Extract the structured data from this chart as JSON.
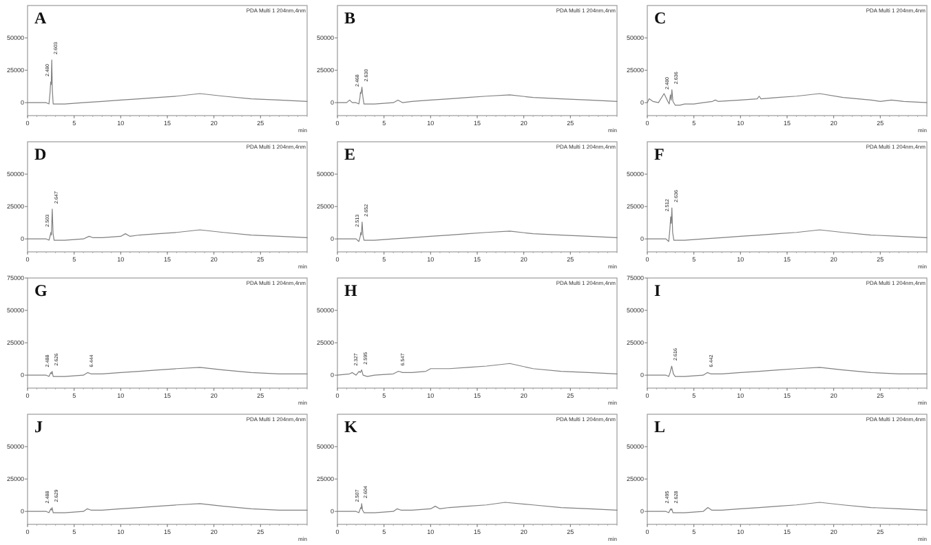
{
  "chart_data": [
    {
      "type": "line",
      "title": "A",
      "subtitle": "PDA Multi 1 204nm,4nm",
      "xlabel": "min",
      "xlim": [
        0,
        30
      ],
      "xticks": [
        0,
        5,
        10,
        15,
        20,
        25
      ],
      "ylim": [
        -10000,
        75000
      ],
      "yticks": [
        0,
        25000,
        50000
      ],
      "grid": false,
      "marker": "none",
      "series": [
        {
          "color": "#7f7f7f",
          "x": [
            0,
            1,
            2,
            2.3,
            2.42,
            2.48,
            2.54,
            2.6,
            2.66,
            2.75,
            3,
            4,
            6,
            8,
            10,
            12,
            14,
            16,
            18.5,
            21,
            24,
            27,
            30
          ],
          "values": [
            0,
            0,
            0,
            -1000,
            8000,
            16000,
            14000,
            33000,
            10000,
            -1000,
            -1000,
            -1000,
            0,
            1000,
            2000,
            3000,
            4000,
            5000,
            7000,
            5000,
            3000,
            2000,
            1000
          ]
        }
      ],
      "annotations": [
        {
          "text": "2.480",
          "x": 2.48,
          "y": 16000
        },
        {
          "text": "2.603",
          "x": 2.6,
          "y": 33000
        }
      ]
    },
    {
      "type": "line",
      "title": "B",
      "subtitle": "PDA Multi 1 204nm,4nm",
      "xlabel": "min",
      "xlim": [
        0,
        30
      ],
      "xticks": [
        0,
        5,
        10,
        15,
        20,
        25
      ],
      "ylim": [
        -10000,
        75000
      ],
      "yticks": [
        0,
        25000,
        50000
      ],
      "grid": false,
      "marker": "none",
      "series": [
        {
          "color": "#7f7f7f",
          "x": [
            0,
            1,
            1.3,
            1.6,
            2,
            2.3,
            2.42,
            2.47,
            2.54,
            2.63,
            2.72,
            2.85,
            3.2,
            4,
            6,
            6.5,
            7,
            8,
            10,
            12,
            14,
            16,
            18.5,
            21,
            24,
            27,
            30
          ],
          "values": [
            0,
            0,
            2000,
            0,
            0,
            -1000,
            4000,
            8000,
            7000,
            12000,
            5000,
            -1000,
            -1000,
            -1000,
            0,
            2000,
            0,
            1000,
            2000,
            3000,
            4000,
            5000,
            6000,
            4000,
            3000,
            2000,
            1000
          ]
        }
      ],
      "annotations": [
        {
          "text": "2.468",
          "x": 2.47,
          "y": 8000
        },
        {
          "text": "2.630",
          "x": 2.63,
          "y": 12000
        }
      ]
    },
    {
      "type": "line",
      "title": "C",
      "subtitle": "PDA Multi 1 204nm,4nm",
      "xlabel": "min",
      "xlim": [
        0,
        30
      ],
      "xticks": [
        0,
        5,
        10,
        15,
        20,
        25
      ],
      "ylim": [
        -10000,
        75000
      ],
      "yticks": [
        0,
        25000,
        50000
      ],
      "grid": false,
      "marker": "none",
      "series": [
        {
          "color": "#7f7f7f",
          "x": [
            0,
            0.2,
            0.6,
            1.2,
            1.8,
            2.2,
            2.35,
            2.48,
            2.56,
            2.64,
            2.75,
            3,
            3.5,
            4,
            5,
            7,
            7.3,
            7.6,
            10,
            11.8,
            12,
            12.2,
            14,
            16,
            18.5,
            21,
            24,
            25,
            26.2,
            27.5,
            30
          ],
          "values": [
            0,
            3000,
            1000,
            0,
            7000,
            1000,
            -1000,
            6000,
            2000,
            10000,
            1000,
            -2000,
            -2000,
            -1000,
            -1000,
            1000,
            2000,
            1000,
            2000,
            3000,
            5000,
            3000,
            4000,
            5000,
            7000,
            4000,
            2000,
            1000,
            2000,
            1000,
            0
          ]
        }
      ],
      "annotations": [
        {
          "text": "2.480",
          "x": 2.48,
          "y": 6000
        },
        {
          "text": "2.636",
          "x": 2.64,
          "y": 10000
        }
      ]
    },
    {
      "type": "line",
      "title": "D",
      "subtitle": "PDA Multi 1 204nm,4nm",
      "xlabel": "min",
      "xlim": [
        0,
        30
      ],
      "xticks": [
        0,
        5,
        10,
        15,
        20,
        25
      ],
      "ylim": [
        -10000,
        75000
      ],
      "yticks": [
        0,
        25000,
        50000
      ],
      "grid": false,
      "marker": "none",
      "series": [
        {
          "color": "#7f7f7f",
          "x": [
            0,
            1,
            2,
            2.3,
            2.45,
            2.5,
            2.56,
            2.65,
            2.74,
            2.85,
            3.2,
            4,
            6,
            6.6,
            7,
            8,
            10,
            10.5,
            11,
            12,
            14,
            16,
            18.5,
            21,
            24,
            27,
            30
          ],
          "values": [
            0,
            0,
            0,
            -1000,
            3000,
            5000,
            3000,
            23000,
            4000,
            -1000,
            -1000,
            -1000,
            0,
            2000,
            1000,
            1000,
            2000,
            4000,
            2000,
            3000,
            4000,
            5000,
            7000,
            5000,
            3000,
            2000,
            1000
          ]
        }
      ],
      "annotations": [
        {
          "text": "2.503",
          "x": 2.5,
          "y": 5000
        },
        {
          "text": "2.647",
          "x": 2.65,
          "y": 23000
        }
      ]
    },
    {
      "type": "line",
      "title": "E",
      "subtitle": "PDA Multi 1 204nm,4nm",
      "xlabel": "min",
      "xlim": [
        0,
        30
      ],
      "xticks": [
        0,
        5,
        10,
        15,
        20,
        25
      ],
      "ylim": [
        -10000,
        75000
      ],
      "yticks": [
        0,
        25000,
        50000
      ],
      "grid": false,
      "marker": "none",
      "series": [
        {
          "color": "#7f7f7f",
          "x": [
            0,
            1,
            2,
            2.3,
            2.45,
            2.51,
            2.57,
            2.65,
            2.74,
            2.85,
            3.2,
            4,
            6,
            8,
            10,
            12,
            14,
            16,
            18.5,
            21,
            24,
            27,
            30
          ],
          "values": [
            0,
            0,
            0,
            -2000,
            2000,
            5000,
            3000,
            13000,
            3000,
            -1000,
            -1000,
            -1000,
            0,
            1000,
            2000,
            3000,
            4000,
            5000,
            6000,
            4000,
            3000,
            2000,
            1000
          ]
        }
      ],
      "annotations": [
        {
          "text": "2.513",
          "x": 2.51,
          "y": 5000
        },
        {
          "text": "2.652",
          "x": 2.65,
          "y": 13000
        }
      ]
    },
    {
      "type": "line",
      "title": "F",
      "subtitle": "PDA Multi 1 204nm,4nm",
      "xlabel": "min",
      "xlim": [
        0,
        30
      ],
      "xticks": [
        0,
        5,
        10,
        15,
        20,
        25
      ],
      "ylim": [
        -10000,
        75000
      ],
      "yticks": [
        0,
        25000,
        50000
      ],
      "grid": false,
      "marker": "none",
      "series": [
        {
          "color": "#7f7f7f",
          "x": [
            0,
            1,
            2,
            2.3,
            2.43,
            2.51,
            2.57,
            2.64,
            2.72,
            2.85,
            3.2,
            4,
            6,
            8,
            10,
            12,
            14,
            16,
            18.5,
            21,
            24,
            27,
            30
          ],
          "values": [
            0,
            0,
            0,
            -2000,
            8000,
            17000,
            12000,
            24000,
            5000,
            -1000,
            -1000,
            -1000,
            0,
            1000,
            2000,
            3000,
            4000,
            5000,
            7000,
            5000,
            3000,
            2000,
            1000
          ]
        }
      ],
      "annotations": [
        {
          "text": "2.512",
          "x": 2.51,
          "y": 17000
        },
        {
          "text": "2.636",
          "x": 2.64,
          "y": 24000
        }
      ]
    },
    {
      "type": "line",
      "title": "G",
      "subtitle": "PDA Multi 1 204nm,4nm",
      "xlabel": "min",
      "xlim": [
        0,
        30
      ],
      "xticks": [
        0,
        5,
        10,
        15,
        20,
        25
      ],
      "ylim": [
        -10000,
        75000
      ],
      "yticks": [
        0,
        25000,
        50000,
        75000
      ],
      "grid": false,
      "marker": "none",
      "series": [
        {
          "color": "#7f7f7f",
          "x": [
            0,
            1,
            2,
            2.3,
            2.49,
            2.56,
            2.63,
            2.75,
            3.2,
            4,
            6,
            6.44,
            6.8,
            8,
            10,
            12,
            14,
            16,
            18.5,
            21,
            24,
            27,
            30
          ],
          "values": [
            0,
            0,
            0,
            -1000,
            2000,
            1000,
            3000,
            -1000,
            -1000,
            -1000,
            0,
            2000,
            1000,
            1000,
            2000,
            3000,
            4000,
            5000,
            6000,
            4000,
            2000,
            1000,
            1000
          ]
        }
      ],
      "annotations": [
        {
          "text": "2.488",
          "x": 2.49,
          "y": 2000
        },
        {
          "text": "2.626",
          "x": 2.63,
          "y": 3000
        },
        {
          "text": "6.444",
          "x": 6.44,
          "y": 2000
        }
      ]
    },
    {
      "type": "line",
      "title": "H",
      "subtitle": "PDA Multi 1 204nm,4nm",
      "xlabel": "min",
      "xlim": [
        0,
        30
      ],
      "xticks": [
        0,
        5,
        10,
        15,
        20,
        25
      ],
      "ylim": [
        -10000,
        75000
      ],
      "yticks": [
        0,
        25000,
        50000
      ],
      "grid": false,
      "marker": "none",
      "series": [
        {
          "color": "#7f7f7f",
          "x": [
            0,
            1.3,
            1.6,
            2,
            2.33,
            2.45,
            2.6,
            2.75,
            3.2,
            4,
            6,
            6.55,
            7,
            8,
            9.5,
            10,
            12,
            14,
            16,
            18.5,
            21,
            24,
            27,
            30
          ],
          "values": [
            0,
            1000,
            2000,
            0,
            3000,
            2000,
            4000,
            0,
            -1000,
            0,
            1000,
            3000,
            2000,
            2000,
            3000,
            5000,
            5000,
            6000,
            7000,
            9000,
            5000,
            3000,
            2000,
            1000
          ]
        }
      ],
      "annotations": [
        {
          "text": "2.327",
          "x": 2.33,
          "y": 3000
        },
        {
          "text": "2.595",
          "x": 2.6,
          "y": 4000
        },
        {
          "text": "6.547",
          "x": 6.55,
          "y": 3000
        }
      ]
    },
    {
      "type": "line",
      "title": "I",
      "subtitle": "PDA Multi 1 204nm,4nm",
      "xlabel": "min",
      "xlim": [
        0,
        30
      ],
      "xticks": [
        0,
        5,
        10,
        15,
        20,
        25
      ],
      "ylim": [
        -10000,
        75000
      ],
      "yticks": [
        0,
        25000,
        50000,
        75000
      ],
      "grid": false,
      "marker": "none",
      "series": [
        {
          "color": "#7f7f7f",
          "x": [
            0,
            1,
            2,
            2.3,
            2.45,
            2.62,
            2.8,
            3,
            4,
            6,
            6.44,
            6.8,
            8,
            10,
            12,
            14,
            16,
            18.5,
            21,
            24,
            27,
            30
          ],
          "values": [
            0,
            0,
            0,
            -1000,
            2000,
            7000,
            1000,
            -1000,
            -1000,
            0,
            2000,
            1000,
            1000,
            2000,
            3000,
            4000,
            5000,
            6000,
            4000,
            2000,
            1000,
            1000
          ]
        }
      ],
      "annotations": [
        {
          "text": "2.616",
          "x": 2.62,
          "y": 7000
        },
        {
          "text": "6.442",
          "x": 6.44,
          "y": 2000
        }
      ]
    },
    {
      "type": "line",
      "title": "J",
      "subtitle": "PDA Multi 1 204nm,4nm",
      "xlabel": "min",
      "xlim": [
        0,
        30
      ],
      "xticks": [
        0,
        5,
        10,
        15,
        20,
        25
      ],
      "ylim": [
        -10000,
        75000
      ],
      "yticks": [
        0,
        25000,
        50000
      ],
      "grid": false,
      "marker": "none",
      "series": [
        {
          "color": "#7f7f7f",
          "x": [
            0,
            1,
            2,
            2.3,
            2.49,
            2.56,
            2.63,
            2.75,
            3.2,
            4,
            6,
            6.4,
            6.8,
            8,
            10,
            12,
            14,
            16,
            18.5,
            21,
            24,
            27,
            30
          ],
          "values": [
            0,
            0,
            0,
            -1000,
            2000,
            1000,
            3000,
            -1000,
            -1000,
            -1000,
            0,
            2000,
            1000,
            1000,
            2000,
            3000,
            4000,
            5000,
            6000,
            4000,
            2000,
            1000,
            1000
          ]
        }
      ],
      "annotations": [
        {
          "text": "2.488",
          "x": 2.49,
          "y": 2000
        },
        {
          "text": "2.629",
          "x": 2.63,
          "y": 3000
        }
      ]
    },
    {
      "type": "line",
      "title": "K",
      "subtitle": "PDA Multi 1 204nm,4nm",
      "xlabel": "min",
      "xlim": [
        0,
        30
      ],
      "xticks": [
        0,
        5,
        10,
        15,
        20,
        25
      ],
      "ylim": [
        -10000,
        75000
      ],
      "yticks": [
        0,
        25000,
        50000
      ],
      "grid": false,
      "marker": "none",
      "series": [
        {
          "color": "#7f7f7f",
          "x": [
            0,
            1,
            2,
            2.3,
            2.45,
            2.51,
            2.56,
            2.6,
            2.7,
            2.85,
            3.2,
            4,
            6,
            6.4,
            6.8,
            8,
            10,
            10.5,
            11,
            12,
            14,
            16,
            18,
            21,
            24,
            27,
            30
          ],
          "values": [
            0,
            0,
            0,
            -1000,
            2000,
            3000,
            2000,
            6000,
            1000,
            -1000,
            -1000,
            -1000,
            0,
            2000,
            1000,
            1000,
            2000,
            4000,
            2000,
            3000,
            4000,
            5000,
            7000,
            5000,
            3000,
            2000,
            1000
          ]
        }
      ],
      "annotations": [
        {
          "text": "2.507",
          "x": 2.51,
          "y": 3000
        },
        {
          "text": "2.604",
          "x": 2.6,
          "y": 6000
        }
      ]
    },
    {
      "type": "line",
      "title": "L",
      "subtitle": "PDA Multi 1 204nm,4nm",
      "xlabel": "min",
      "xlim": [
        0,
        30
      ],
      "xticks": [
        0,
        5,
        10,
        15,
        20,
        25
      ],
      "ylim": [
        -10000,
        75000
      ],
      "yticks": [
        0,
        25000,
        50000
      ],
      "grid": false,
      "marker": "none",
      "series": [
        {
          "color": "#7f7f7f",
          "x": [
            0,
            1,
            2,
            2.3,
            2.5,
            2.56,
            2.63,
            2.75,
            3.2,
            4,
            6,
            6.5,
            6.9,
            8,
            10,
            12,
            14,
            16,
            18.5,
            21,
            24,
            27,
            30
          ],
          "values": [
            0,
            0,
            0,
            -1000,
            2000,
            1000,
            2000,
            -1000,
            -1000,
            -1000,
            0,
            3000,
            1000,
            1000,
            2000,
            3000,
            4000,
            5000,
            7000,
            5000,
            3000,
            2000,
            1000
          ]
        }
      ],
      "annotations": [
        {
          "text": "2.495",
          "x": 2.5,
          "y": 2000
        },
        {
          "text": "2.628",
          "x": 2.63,
          "y": 2000
        }
      ]
    }
  ]
}
